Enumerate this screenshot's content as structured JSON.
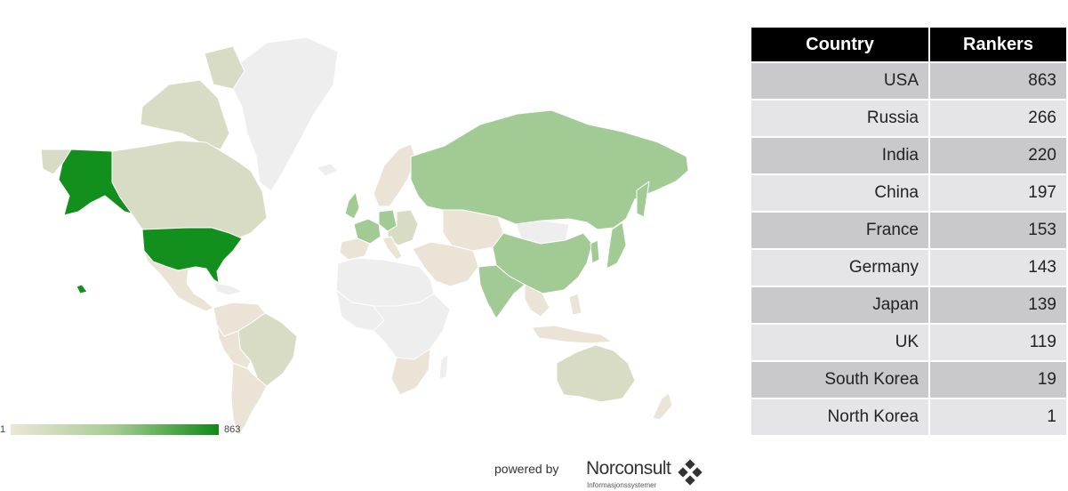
{
  "map": {
    "colors": {
      "none": "#eeeeee",
      "low": "#ebe3d6",
      "mid": "#d8dcc5",
      "high": "#a1ca95",
      "top": "#128f1c",
      "border": "#ffffff"
    },
    "legend": {
      "min": "1",
      "max": "863",
      "color_min": "#ece6d6",
      "color_max": "#0f8a16"
    }
  },
  "table": {
    "headers": [
      "Country",
      "Rankers"
    ],
    "rows": [
      {
        "country": "USA",
        "rankers": "863"
      },
      {
        "country": "Russia",
        "rankers": "266"
      },
      {
        "country": "India",
        "rankers": "220"
      },
      {
        "country": "China",
        "rankers": "197"
      },
      {
        "country": "France",
        "rankers": "153"
      },
      {
        "country": "Germany",
        "rankers": "143"
      },
      {
        "country": "Japan",
        "rankers": "139"
      },
      {
        "country": "UK",
        "rankers": "119"
      },
      {
        "country": "South Korea",
        "rankers": "19"
      },
      {
        "country": "North Korea",
        "rankers": "1"
      }
    ]
  },
  "credit": {
    "powered_by": "powered by",
    "company": "Norconsult",
    "division": "Informasjonssystemer",
    "mark_icon": "diamond-cluster-icon"
  }
}
